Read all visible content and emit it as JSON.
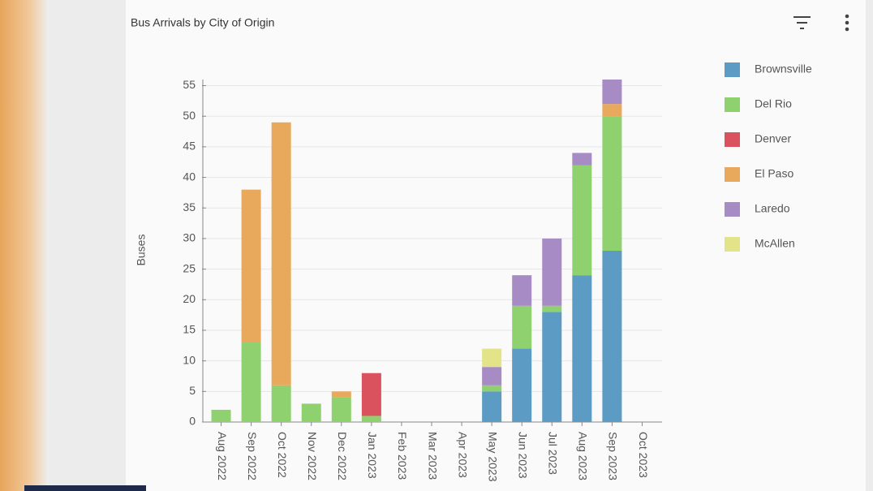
{
  "chart_data": {
    "type": "bar",
    "stacked": true,
    "title": "Bus Arrivals by City of Origin",
    "y_label": "Buses",
    "categories": [
      "Aug 2022",
      "Sep 2022",
      "Oct 2022",
      "Nov 2022",
      "Dec 2022",
      "Jan 2023",
      "Feb 2023",
      "Mar 2023",
      "Apr 2023",
      "May 2023",
      "Jun 2023",
      "Jul 2023",
      "Aug 2023",
      "Sep 2023",
      "Oct 2023"
    ],
    "series": [
      {
        "name": "Brownsville",
        "color": "#5b9bc4",
        "values": [
          0,
          0,
          0,
          0,
          0,
          0,
          0,
          0,
          0,
          5,
          12,
          18,
          24,
          28,
          0
        ]
      },
      {
        "name": "Del Rio",
        "color": "#8fd16f",
        "values": [
          2,
          13,
          6,
          3,
          4,
          1,
          0,
          0,
          0,
          1,
          7,
          1,
          18,
          22,
          0
        ]
      },
      {
        "name": "Denver",
        "color": "#d9525e",
        "values": [
          0,
          0,
          0,
          0,
          0,
          7,
          0,
          0,
          0,
          0,
          0,
          0,
          0,
          0,
          0
        ]
      },
      {
        "name": "El Paso",
        "color": "#e8a95c",
        "values": [
          0,
          25,
          43,
          0,
          1,
          0,
          0,
          0,
          0,
          0,
          0,
          0,
          0,
          2,
          0
        ]
      },
      {
        "name": "Laredo",
        "color": "#a78bc4",
        "values": [
          0,
          0,
          0,
          0,
          0,
          0,
          0,
          0,
          0,
          3,
          5,
          11,
          2,
          4,
          0
        ]
      },
      {
        "name": "McAllen",
        "color": "#e3e38a",
        "values": [
          0,
          0,
          0,
          0,
          0,
          0,
          0,
          0,
          0,
          3,
          0,
          0,
          0,
          0,
          0
        ]
      }
    ],
    "ylim": [
      0,
      56
    ],
    "yticks": [
      0,
      5,
      10,
      15,
      20,
      25,
      30,
      35,
      40,
      45,
      50,
      55
    ],
    "grid": true,
    "legend": "right"
  }
}
